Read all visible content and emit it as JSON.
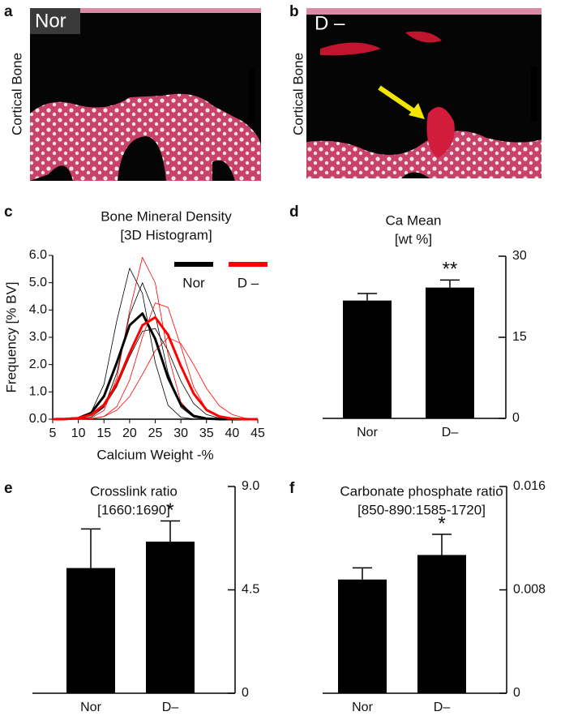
{
  "images": [
    {
      "panel": "a",
      "tag": "Nor",
      "side": "Cortical Bone"
    },
    {
      "panel": "b",
      "tag": "D –",
      "side": "Cortical Bone"
    }
  ],
  "chart_data": [
    {
      "type": "line",
      "panel": "c",
      "title": "Bone Mineral Density",
      "subtitle": "[3D Histogram]",
      "x_label": "Calcium Weight -%",
      "y_label": "Frequency [% BV]",
      "x": [
        5,
        7.5,
        10,
        12.5,
        15,
        17.5,
        20,
        22.5,
        25,
        27.5,
        30,
        32.5,
        35,
        37.5,
        40,
        42.5,
        45
      ],
      "xlim": [
        5,
        45
      ],
      "xticks": [
        5,
        10,
        15,
        20,
        25,
        30,
        35,
        40,
        45
      ],
      "ylim": [
        0,
        6
      ],
      "yticks": [
        {
          "value": 0,
          "label": "0.0"
        },
        {
          "value": 1,
          "label": "1.0"
        },
        {
          "value": 2,
          "label": "2.0"
        },
        {
          "value": 3,
          "label": "3.0"
        },
        {
          "value": 4,
          "label": "4.0"
        },
        {
          "value": 5,
          "label": "5.0"
        },
        {
          "value": 6,
          "label": "6.0"
        }
      ],
      "series": [
        {
          "color": "#000000",
          "linewidth": 0.8,
          "values": [
            0,
            0,
            0.03,
            0.25,
            1.28,
            3.61,
            5.53,
            4.61,
            2.08,
            0.51,
            0.07,
            0.01,
            0,
            0,
            0,
            0,
            0
          ]
        },
        {
          "color": "#000000",
          "linewidth": 0.8,
          "values": [
            0,
            0,
            0.01,
            0.07,
            0.44,
            1.7,
            3.82,
            5.0,
            3.82,
            1.7,
            0.44,
            0.07,
            0.01,
            0,
            0,
            0,
            0
          ]
        },
        {
          "color": "#000000",
          "linewidth": 0.8,
          "values": [
            0,
            0,
            0.03,
            0.13,
            0.46,
            1.2,
            2.29,
            3.22,
            3.32,
            2.51,
            1.4,
            0.57,
            0.17,
            0.04,
            0.01,
            0,
            0
          ]
        },
        {
          "color": "#ff0000",
          "linewidth": 0.8,
          "values": [
            0,
            0,
            0,
            0.04,
            0.32,
            1.5,
            3.97,
            5.93,
            4.99,
            2.37,
            0.63,
            0.1,
            0.01,
            0,
            0,
            0,
            0
          ]
        },
        {
          "color": "#ff0000",
          "linewidth": 0.8,
          "values": [
            0,
            0,
            0,
            0.01,
            0.1,
            0.46,
            1.43,
            3.0,
            4.26,
            4.1,
            2.67,
            1.18,
            0.35,
            0.07,
            0.01,
            0,
            0
          ]
        },
        {
          "color": "#ff0000",
          "linewidth": 0.8,
          "values": [
            0,
            0,
            0,
            0.02,
            0.1,
            0.33,
            0.83,
            1.64,
            2.51,
            2.99,
            2.77,
            2.0,
            1.13,
            0.49,
            0.17,
            0.04,
            0.01
          ]
        },
        {
          "name": "Nor",
          "color": "#000000",
          "linewidth": 3,
          "values": [
            0,
            0.01,
            0.04,
            0.23,
            0.84,
            2.07,
            3.44,
            3.87,
            2.94,
            1.52,
            0.53,
            0.12,
            0.02,
            0,
            0,
            0,
            0
          ]
        },
        {
          "name": "D –",
          "color": "#ff0000",
          "linewidth": 3,
          "values": [
            0,
            0.01,
            0.04,
            0.16,
            0.53,
            1.3,
            2.42,
            3.44,
            3.73,
            3.09,
            1.95,
            0.94,
            0.34,
            0.1,
            0.02,
            0,
            0
          ]
        }
      ]
    },
    {
      "type": "bar",
      "panel": "d",
      "title": "Ca Mean",
      "subtitle": "[wt %]",
      "categories": [
        "Nor",
        "D–"
      ],
      "values": [
        21.8,
        24.2
      ],
      "errors": [
        1.3,
        1.4
      ],
      "value_annotations": [
        null,
        "**"
      ],
      "color": "#000000",
      "ylim": [
        0,
        30
      ],
      "yticks": [
        0,
        15,
        30
      ]
    },
    {
      "type": "bar",
      "panel": "e",
      "title": "Crosslink ratio",
      "subtitle": "[1660:1690]",
      "categories": [
        "Nor",
        "D–"
      ],
      "values": [
        5.45,
        6.6
      ],
      "errors": [
        1.7,
        0.9
      ],
      "value_annotations": [
        null,
        "*"
      ],
      "color": "#000000",
      "ylim": [
        0,
        9
      ],
      "yticks": [
        0,
        4.5,
        {
          "value": 9,
          "label": "9.0"
        }
      ]
    },
    {
      "type": "bar",
      "panel": "f",
      "title": "Carbonate phosphate ratio",
      "subtitle": "[850-890:1585-1720]",
      "categories": [
        "Nor",
        "D–"
      ],
      "values": [
        0.0088,
        0.0107
      ],
      "errors": [
        0.0009,
        0.0016
      ],
      "value_annotations": [
        null,
        "*"
      ],
      "color": "#000000",
      "ylim": [
        0,
        0.016
      ],
      "yticks": [
        0,
        0.008,
        0.016
      ]
    }
  ]
}
